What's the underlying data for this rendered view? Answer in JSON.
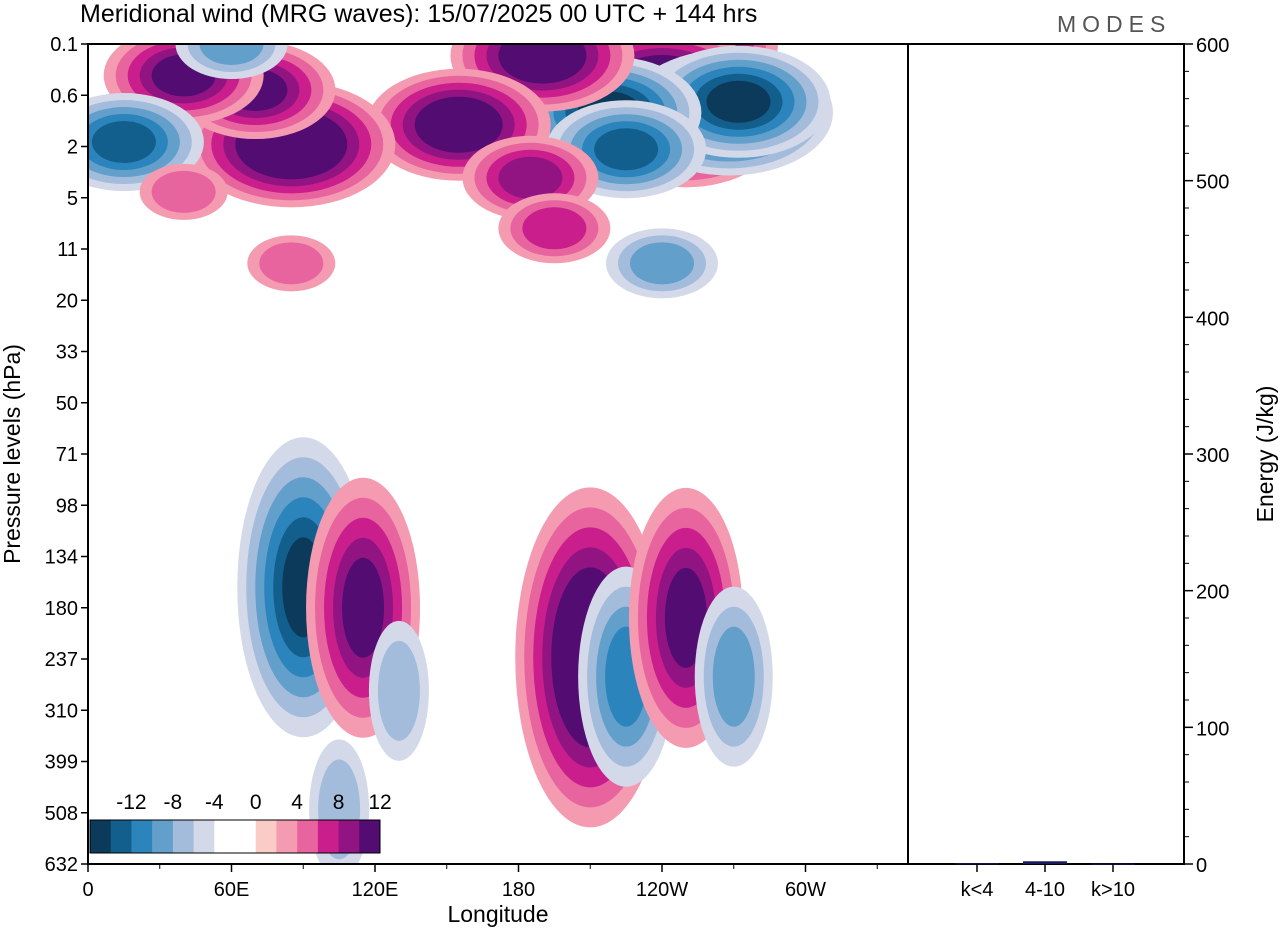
{
  "title": "Meridional wind (MRG waves):  15/07/2025  00 UTC  + 144 hrs",
  "brand": "MODES",
  "chart_data": [
    {
      "type": "heatmap",
      "title": "Meridional wind (MRG waves):  15/07/2025  00 UTC  + 144 hrs",
      "xlabel": "Longitude",
      "ylabel": "Pressure levels (hPa)",
      "x_ticks": [
        "0",
        "60E",
        "120E",
        "180",
        "120W",
        "60W"
      ],
      "y_ticks": [
        "0.1",
        "0.6",
        "2",
        "5",
        "11",
        "20",
        "33",
        "50",
        "71",
        "98",
        "134",
        "180",
        "237",
        "310",
        "399",
        "508",
        "632"
      ],
      "colorbar": {
        "labels": [
          "-12",
          "-8",
          "-4",
          "0",
          "4",
          "8",
          "12"
        ],
        "colors": [
          "#0c3a5a",
          "#125f8d",
          "#2b84bb",
          "#629fcb",
          "#a4bcdb",
          "#d4d9ea",
          "#ffffff",
          "#ffffff",
          "#fbcbc6",
          "#f49bb2",
          "#e8649e",
          "#c91e8c",
          "#921483",
          "#520c72"
        ]
      },
      "features": [
        {
          "lon": 240,
          "lev": 0.1,
          "value": 16
        },
        {
          "lon": 240,
          "lev": 0.5,
          "value": 14
        },
        {
          "lon": 250,
          "lev": 1.4,
          "value": 12
        },
        {
          "lon": 268,
          "lev": 0.9,
          "value": -14
        },
        {
          "lon": 272,
          "lev": 0.7,
          "value": -12
        },
        {
          "lon": 218,
          "lev": 0.9,
          "value": -12
        },
        {
          "lon": 225,
          "lev": 2.1,
          "value": -10
        },
        {
          "lon": 190,
          "lev": 0.15,
          "value": 12
        },
        {
          "lon": 155,
          "lev": 1.2,
          "value": 12
        },
        {
          "lon": 185,
          "lev": 3.5,
          "value": 8
        },
        {
          "lon": 195,
          "lev": 8,
          "value": 6
        },
        {
          "lon": 85,
          "lev": 1.9,
          "value": 14
        },
        {
          "lon": 70,
          "lev": 0.5,
          "value": 10
        },
        {
          "lon": 40,
          "lev": 0.3,
          "value": 10
        },
        {
          "lon": 15,
          "lev": 1.8,
          "value": -10
        },
        {
          "lon": 60,
          "lev": 0.1,
          "value": -6
        },
        {
          "lon": 85,
          "lev": 13,
          "value": 4
        },
        {
          "lon": 40,
          "lev": 4.5,
          "value": 4
        },
        {
          "lon": 240,
          "lev": 13,
          "value": -5
        },
        {
          "lon": 90,
          "lev": 160,
          "value": -12
        },
        {
          "lon": 105,
          "lev": 500,
          "value": -4
        },
        {
          "lon": 115,
          "lev": 180,
          "value": 10
        },
        {
          "lon": 195,
          "lev": 210,
          "value": 4
        },
        {
          "lon": 130,
          "lev": 280,
          "value": -4
        },
        {
          "lon": 210,
          "lev": 235,
          "value": 14
        },
        {
          "lon": 225,
          "lev": 260,
          "value": -8
        },
        {
          "lon": 250,
          "lev": 190,
          "value": 10
        },
        {
          "lon": 270,
          "lev": 260,
          "value": -6
        }
      ]
    },
    {
      "type": "bar",
      "ylabel": "Energy (J/kg)",
      "categories": [
        "k<4",
        "4-10",
        "k>10"
      ],
      "values": [
        0.5,
        2,
        0.3
      ],
      "ylim": [
        0,
        600
      ],
      "y_ticks": [
        "0",
        "100",
        "200",
        "300",
        "400",
        "500",
        "600"
      ],
      "bar_color": "#1a1a5a"
    }
  ]
}
